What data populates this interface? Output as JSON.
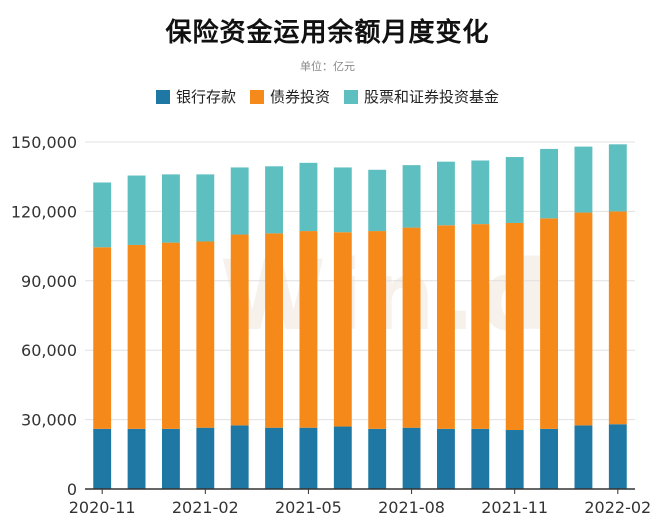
{
  "title": "保险资金运用余额月度变化",
  "unit_label": "单位：亿元",
  "watermark": "Win.d",
  "colors": {
    "deposit": "#1f78a4",
    "bond": "#f5891a",
    "stock_fund": "#5dbfc0",
    "grid": "#e0e0e0",
    "axis": "#333333"
  },
  "legend": [
    {
      "label": "银行存款",
      "color": "#1f78a4"
    },
    {
      "label": "债券投资",
      "color": "#f5891a"
    },
    {
      "label": "股票和证券投资基金",
      "color": "#5dbfc0"
    }
  ],
  "chart_data": {
    "type": "bar",
    "stacked": true,
    "title": "保险资金运用余额月度变化",
    "subtitle": "单位：亿元",
    "categories": [
      "2020-11",
      "2020-12",
      "2021-01",
      "2021-02",
      "2021-03",
      "2021-04",
      "2021-05",
      "2021-06",
      "2021-07",
      "2021-08",
      "2021-09",
      "2021-10",
      "2021-11",
      "2021-12",
      "2022-01",
      "2022-02"
    ],
    "x_tick_labels": [
      {
        "index": 0,
        "label": "2020-11"
      },
      {
        "index": 3,
        "label": "2021-02"
      },
      {
        "index": 6,
        "label": "2021-05"
      },
      {
        "index": 9,
        "label": "2021-08"
      },
      {
        "index": 12,
        "label": "2021-11"
      },
      {
        "index": 15,
        "label": "2022-02"
      }
    ],
    "ylim": [
      0,
      150000
    ],
    "yticks": [
      0,
      30000,
      60000,
      90000,
      120000,
      150000
    ],
    "ytick_labels": [
      "0",
      "30,000",
      "60,000",
      "90,000",
      "120,000",
      "150,000"
    ],
    "grid": true,
    "legend_position": "top",
    "series": [
      {
        "name": "银行存款",
        "values": [
          26000,
          26000,
          26000,
          26500,
          27500,
          26500,
          26500,
          27000,
          26000,
          26500,
          26000,
          26000,
          25500,
          26000,
          27500,
          28000
        ]
      },
      {
        "name": "债券投资",
        "values": [
          78500,
          79500,
          80500,
          80500,
          82500,
          84000,
          85000,
          84000,
          85500,
          86500,
          88000,
          88500,
          89500,
          91000,
          92000,
          92000
        ]
      },
      {
        "name": "股票和证券投资基金",
        "values": [
          28000,
          30000,
          29500,
          29000,
          29000,
          29000,
          29500,
          28000,
          26500,
          27000,
          27500,
          27500,
          28500,
          30000,
          28500,
          29000
        ]
      }
    ]
  }
}
